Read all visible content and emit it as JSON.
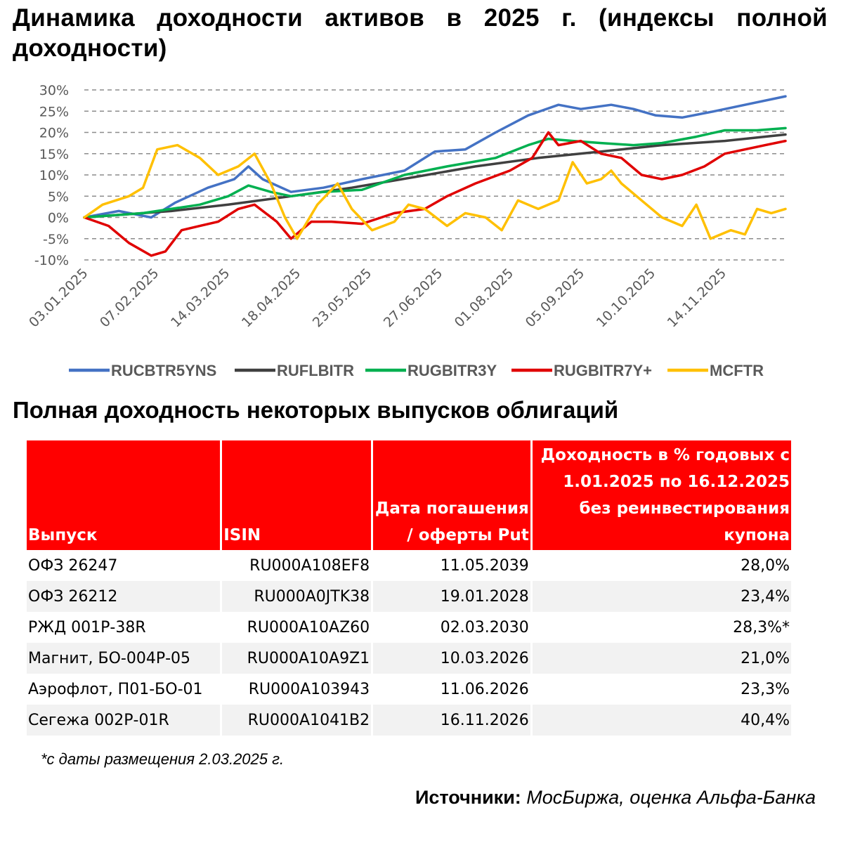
{
  "title": "Динамика доходности активов в 2025 г. (индексы полной доходности)",
  "chart_data": {
    "type": "line",
    "title": "Динамика доходности активов в 2025 г. (индексы полной доходности)",
    "ylim": [
      -10,
      30
    ],
    "yticks": [
      -10,
      -5,
      0,
      5,
      10,
      15,
      20,
      25,
      30
    ],
    "ytick_labels": [
      "-10%",
      "-5%",
      "0%",
      "5%",
      "10%",
      "15%",
      "20%",
      "25%",
      "30%"
    ],
    "x_tick_labels": [
      "03.01.2025",
      "07.02.2025",
      "14.03.2025",
      "18.04.2025",
      "23.05.2025",
      "27.06.2025",
      "01.08.2025",
      "05.09.2025",
      "10.10.2025",
      "14.11.2025"
    ],
    "x_start": "03.01.2025",
    "x_end": "15.12.2025",
    "grid": "horizontal dashed",
    "legend": "bottom",
    "series": [
      {
        "name": "RUCBTR5YNS",
        "color": "#4472c4",
        "points": [
          [
            "03.01.2025",
            0
          ],
          [
            "20.01.2025",
            1.5
          ],
          [
            "05.02.2025",
            0
          ],
          [
            "17.02.2025",
            3.5
          ],
          [
            "05.03.2025",
            7
          ],
          [
            "18.03.2025",
            9
          ],
          [
            "25.03.2025",
            12
          ],
          [
            "01.04.2025",
            9
          ],
          [
            "15.04.2025",
            6
          ],
          [
            "01.05.2025",
            7
          ],
          [
            "20.05.2025",
            9
          ],
          [
            "10.06.2025",
            11
          ],
          [
            "25.06.2025",
            15.5
          ],
          [
            "10.07.2025",
            16
          ],
          [
            "25.07.2025",
            20
          ],
          [
            "10.08.2025",
            24
          ],
          [
            "25.08.2025",
            26.5
          ],
          [
            "05.09.2025",
            25.5
          ],
          [
            "20.09.2025",
            26.5
          ],
          [
            "01.10.2025",
            25.5
          ],
          [
            "12.10.2025",
            24
          ],
          [
            "25.10.2025",
            23.5
          ],
          [
            "10.11.2025",
            25
          ],
          [
            "25.11.2025",
            26.5
          ],
          [
            "15.12.2025",
            28.5
          ]
        ]
      },
      {
        "name": "RUFLBITR",
        "color": "#404040",
        "points": [
          [
            "03.01.2025",
            0
          ],
          [
            "15.02.2025",
            1.5
          ],
          [
            "15.03.2025",
            3
          ],
          [
            "15.04.2025",
            5
          ],
          [
            "15.05.2025",
            7
          ],
          [
            "15.06.2025",
            9.5
          ],
          [
            "15.07.2025",
            12
          ],
          [
            "15.08.2025",
            14
          ],
          [
            "15.09.2025",
            15.5
          ],
          [
            "15.10.2025",
            17
          ],
          [
            "15.11.2025",
            18
          ],
          [
            "15.12.2025",
            19.5
          ]
        ]
      },
      {
        "name": "RUGBITR3Y",
        "color": "#00b050",
        "points": [
          [
            "03.01.2025",
            0
          ],
          [
            "01.02.2025",
            1
          ],
          [
            "01.03.2025",
            3
          ],
          [
            "15.03.2025",
            5
          ],
          [
            "25.03.2025",
            7.5
          ],
          [
            "05.04.2025",
            6
          ],
          [
            "15.04.2025",
            5
          ],
          [
            "01.05.2025",
            6
          ],
          [
            "20.05.2025",
            6.5
          ],
          [
            "10.06.2025",
            10
          ],
          [
            "01.07.2025",
            12
          ],
          [
            "25.07.2025",
            14
          ],
          [
            "10.08.2025",
            17
          ],
          [
            "20.08.2025",
            18.5
          ],
          [
            "01.09.2025",
            18
          ],
          [
            "15.09.2025",
            17.5
          ],
          [
            "01.10.2025",
            17
          ],
          [
            "15.10.2025",
            17.5
          ],
          [
            "01.11.2025",
            19
          ],
          [
            "15.11.2025",
            20.5
          ],
          [
            "01.12.2025",
            20.5
          ],
          [
            "15.12.2025",
            21
          ]
        ]
      },
      {
        "name": "RUGBITR7Y+",
        "color": "#e00000",
        "points": [
          [
            "03.01.2025",
            0
          ],
          [
            "15.01.2025",
            -2
          ],
          [
            "25.01.2025",
            -6
          ],
          [
            "05.02.2025",
            -9
          ],
          [
            "12.02.2025",
            -8
          ],
          [
            "20.02.2025",
            -3
          ],
          [
            "01.03.2025",
            -2
          ],
          [
            "10.03.2025",
            -1
          ],
          [
            "20.03.2025",
            2
          ],
          [
            "28.03.2025",
            3
          ],
          [
            "08.04.2025",
            -1
          ],
          [
            "15.04.2025",
            -5
          ],
          [
            "25.04.2025",
            -1
          ],
          [
            "05.05.2025",
            -1
          ],
          [
            "20.05.2025",
            -1.5
          ],
          [
            "05.06.2025",
            1
          ],
          [
            "20.06.2025",
            2
          ],
          [
            "01.07.2025",
            5
          ],
          [
            "15.07.2025",
            8
          ],
          [
            "01.08.2025",
            11
          ],
          [
            "12.08.2025",
            14
          ],
          [
            "20.08.2025",
            20
          ],
          [
            "25.08.2025",
            17
          ],
          [
            "05.09.2025",
            18
          ],
          [
            "15.09.2025",
            15
          ],
          [
            "25.09.2025",
            14
          ],
          [
            "05.10.2025",
            10
          ],
          [
            "15.10.2025",
            9
          ],
          [
            "25.10.2025",
            10
          ],
          [
            "05.11.2025",
            12
          ],
          [
            "15.11.2025",
            15
          ],
          [
            "25.11.2025",
            16
          ],
          [
            "05.12.2025",
            17
          ],
          [
            "15.12.2025",
            18
          ]
        ]
      },
      {
        "name": "MCFTR",
        "color": "#ffc000",
        "points": [
          [
            "03.01.2025",
            0
          ],
          [
            "12.01.2025",
            3
          ],
          [
            "25.01.2025",
            5
          ],
          [
            "01.02.2025",
            7
          ],
          [
            "08.02.2025",
            16
          ],
          [
            "18.02.2025",
            17
          ],
          [
            "01.03.2025",
            14
          ],
          [
            "10.03.2025",
            10
          ],
          [
            "20.03.2025",
            12
          ],
          [
            "28.03.2025",
            15
          ],
          [
            "05.04.2025",
            8
          ],
          [
            "12.04.2025",
            0
          ],
          [
            "18.04.2025",
            -5
          ],
          [
            "28.04.2025",
            3
          ],
          [
            "08.05.2025",
            8
          ],
          [
            "15.05.2025",
            2
          ],
          [
            "25.05.2025",
            -3
          ],
          [
            "05.06.2025",
            -1
          ],
          [
            "12.06.2025",
            3
          ],
          [
            "20.06.2025",
            2
          ],
          [
            "01.07.2025",
            -2
          ],
          [
            "10.07.2025",
            1
          ],
          [
            "20.07.2025",
            0
          ],
          [
            "28.07.2025",
            -3
          ],
          [
            "05.08.2025",
            4
          ],
          [
            "15.08.2025",
            2
          ],
          [
            "25.08.2025",
            4
          ],
          [
            "01.09.2025",
            13
          ],
          [
            "08.09.2025",
            8
          ],
          [
            "15.09.2025",
            9
          ],
          [
            "20.09.2025",
            11
          ],
          [
            "25.09.2025",
            8
          ],
          [
            "05.10.2025",
            4
          ],
          [
            "15.10.2025",
            0
          ],
          [
            "25.10.2025",
            -2
          ],
          [
            "01.11.2025",
            3
          ],
          [
            "08.11.2025",
            -5
          ],
          [
            "18.11.2025",
            -3
          ],
          [
            "25.11.2025",
            -4
          ],
          [
            "01.12.2025",
            2
          ],
          [
            "08.12.2025",
            1
          ],
          [
            "15.12.2025",
            2
          ]
        ]
      }
    ]
  },
  "table": {
    "subtitle": "Полная доходность некоторых выпусков облигаций",
    "headers": {
      "issue": "Выпуск",
      "isin": "ISIN",
      "date": "Дата погашения / оферты Put",
      "yield": "Доходность в % годовых с 1.01.2025 по 16.12.2025 без реинвестирования купона"
    },
    "rows": [
      {
        "issue": "ОФЗ 26247",
        "isin": "RU000A108EF8",
        "date": "11.05.2039",
        "yield": "28,0%"
      },
      {
        "issue": "ОФЗ 26212",
        "isin": "RU000A0JTK38",
        "date": "19.01.2028",
        "yield": "23,4%"
      },
      {
        "issue": "РЖД 001Р-38R",
        "isin": "RU000A10AZ60",
        "date": "02.03.2030",
        "yield": "28,3%*"
      },
      {
        "issue": "Магнит, БО-004Р-05",
        "isin": "RU000A10A9Z1",
        "date": "10.03.2026",
        "yield": "21,0%"
      },
      {
        "issue": "Аэрофлот, П01-БО-01",
        "isin": "RU000A103943",
        "date": "11.06.2026",
        "yield": "23,3%"
      },
      {
        "issue": "Сегежа 002Р-01R",
        "isin": "RU000A1041B2",
        "date": "16.11.2026",
        "yield": "40,4%"
      }
    ],
    "footnote": "*с даты размещения 2.03.2025 г."
  },
  "source": {
    "label": "Источники:",
    "text": " МосБиржа, оценка Альфа-Банка"
  }
}
